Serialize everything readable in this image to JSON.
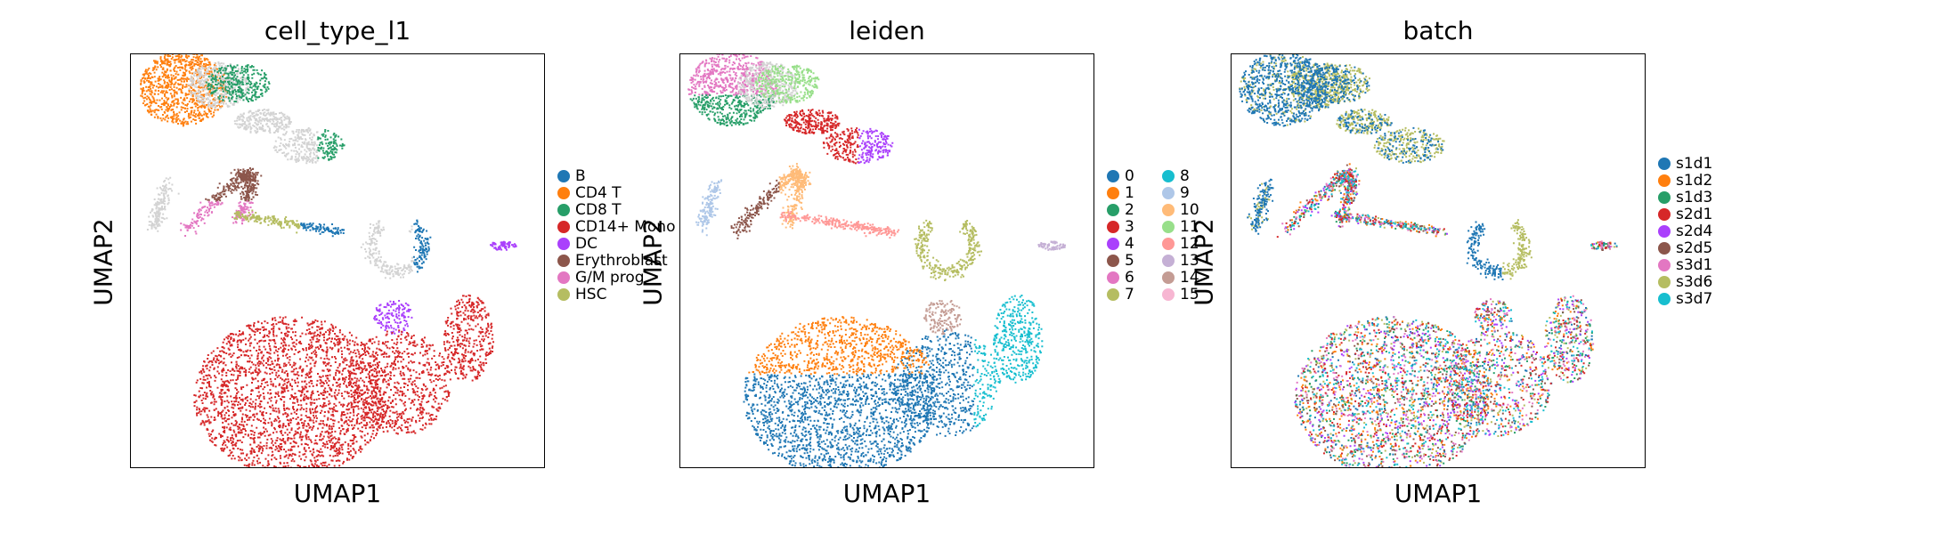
{
  "chart_data": [
    {
      "type": "scatter",
      "title": "cell_type_l1",
      "xlabel": "UMAP1",
      "ylabel": "UMAP2",
      "grid": false,
      "legend_placement": "right",
      "legend": [
        {
          "label": "B",
          "color": "#1f77b4"
        },
        {
          "label": "CD4 T",
          "color": "#ff7f0e"
        },
        {
          "label": "CD8 T",
          "color": "#279e68"
        },
        {
          "label": "CD14+ Mono",
          "color": "#d62728"
        },
        {
          "label": "DC",
          "color": "#aa40fc"
        },
        {
          "label": "Erythroblast",
          "color": "#8c564b"
        },
        {
          "label": "G/M prog",
          "color": "#e377c2"
        },
        {
          "label": "HSC",
          "color": "#b5bd61"
        }
      ]
    },
    {
      "type": "scatter",
      "title": "leiden",
      "xlabel": "UMAP1",
      "ylabel": "UMAP2",
      "grid": false,
      "legend_placement": "right",
      "legend": [
        {
          "label": "0",
          "color": "#1f77b4"
        },
        {
          "label": "1",
          "color": "#ff7f0e"
        },
        {
          "label": "2",
          "color": "#279e68"
        },
        {
          "label": "3",
          "color": "#d62728"
        },
        {
          "label": "4",
          "color": "#aa40fc"
        },
        {
          "label": "5",
          "color": "#8c564b"
        },
        {
          "label": "6",
          "color": "#e377c2"
        },
        {
          "label": "7",
          "color": "#b5bd61"
        },
        {
          "label": "8",
          "color": "#17becf"
        },
        {
          "label": "9",
          "color": "#aec7e8"
        },
        {
          "label": "10",
          "color": "#ffbb78"
        },
        {
          "label": "11",
          "color": "#98df8a"
        },
        {
          "label": "12",
          "color": "#ff9896"
        },
        {
          "label": "13",
          "color": "#c5b0d5"
        },
        {
          "label": "14",
          "color": "#c49c94"
        },
        {
          "label": "15",
          "color": "#f7b6d2"
        }
      ]
    },
    {
      "type": "scatter",
      "title": "batch",
      "xlabel": "UMAP1",
      "ylabel": "UMAP2",
      "grid": false,
      "legend_placement": "right",
      "legend": [
        {
          "label": "s1d1",
          "color": "#1f77b4"
        },
        {
          "label": "s1d2",
          "color": "#ff7f0e"
        },
        {
          "label": "s1d3",
          "color": "#279e68"
        },
        {
          "label": "s2d1",
          "color": "#d62728"
        },
        {
          "label": "s2d4",
          "color": "#aa40fc"
        },
        {
          "label": "s2d5",
          "color": "#8c564b"
        },
        {
          "label": "s3d1",
          "color": "#e377c2"
        },
        {
          "label": "s3d6",
          "color": "#b5bd61"
        },
        {
          "label": "s3d7",
          "color": "#17becf"
        }
      ]
    }
  ],
  "colors": {
    "unassigned_gray": "#d3d3d3"
  }
}
